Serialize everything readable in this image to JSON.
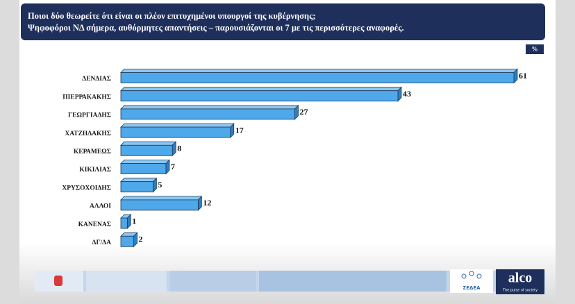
{
  "chart_data": {
    "type": "bar",
    "orientation": "horizontal",
    "title": "Ποιοι δύο θεωρείτε ότι είναι οι πλέον επιτυχημένοι υπουργοί της κυβέρνησης;",
    "subtitle": "Ψηφοφόροι ΝΔ σήμερα, αυθόρμητες απαντήσεις – παρουσιάζονται οι 7 με τις περισσότερες αναφορές.",
    "unit_label": "%",
    "categories": [
      "ΔΕΝΔΙΑΣ",
      "ΠΙΕΡΡΑΚΑΚΗΣ",
      "ΓΕΩΡΓΙΑΔΗΣ",
      "ΧΑΤΖΗΔΑΚΗΣ",
      "ΚΕΡΑΜΕΩΣ",
      "ΚΙΚΙΛΙΑΣ",
      "ΧΡΥΣΟΧΟΙΔΗΣ",
      "ΑΛΛΟΙ",
      "ΚΑΝΕΝΑΣ",
      "ΔΓ/ΔΑ"
    ],
    "values": [
      61,
      43,
      27,
      17,
      8,
      7,
      5,
      12,
      1,
      2
    ],
    "color": "#4ea8ea"
  },
  "footer": {
    "brand": "alco",
    "tagline": "The pulse of society",
    "member": "ΣΕΔΕΑ"
  }
}
